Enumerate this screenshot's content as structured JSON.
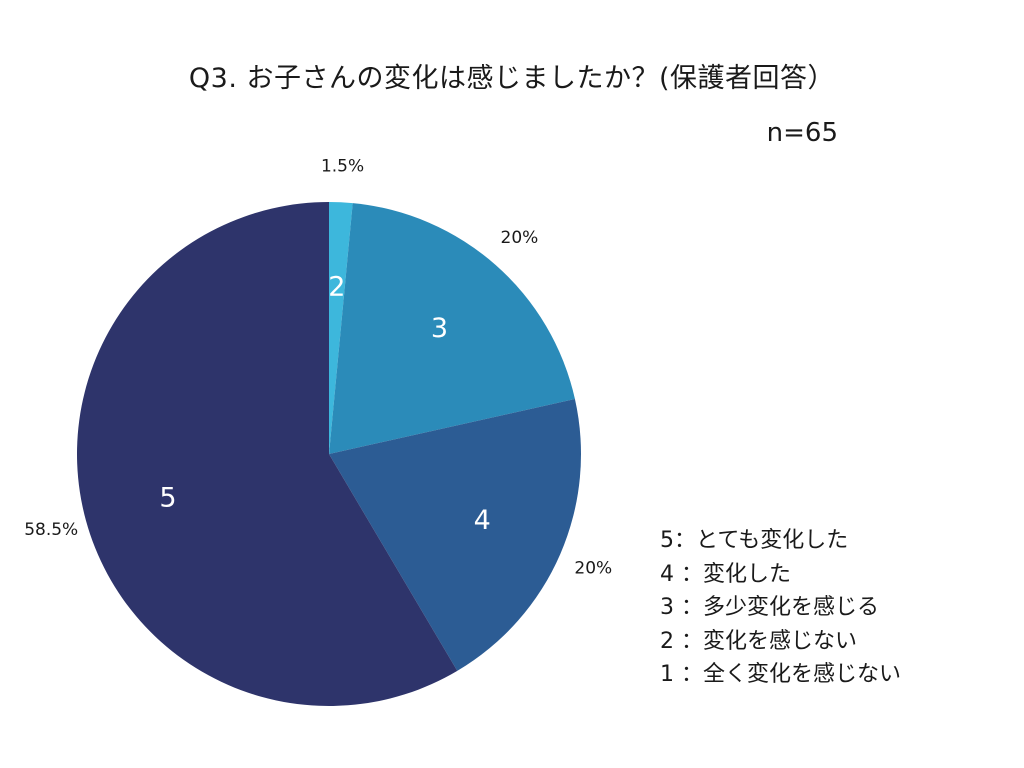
{
  "chart_data": {
    "type": "pie",
    "title": "Q3. お子さんの変化は感じましたか？(保護者回答）",
    "subtitle": "n=65",
    "slices": [
      {
        "label": "2",
        "value": 1.5,
        "pct_label": "1.5%",
        "color": "#3db7dc"
      },
      {
        "label": "3",
        "value": 20,
        "pct_label": "20%",
        "color": "#2b8bb9"
      },
      {
        "label": "4",
        "value": 20,
        "pct_label": "20%",
        "color": "#2c5c94"
      },
      {
        "label": "5",
        "value": 58.5,
        "pct_label": "58.5%",
        "color": "#2e346b"
      }
    ],
    "legend": [
      "5：とても変化した",
      "4 ：変化した",
      "3 ：多少変化を感じる",
      "2 ：変化を感じない",
      "1 ：全く変化を感じない"
    ],
    "legend_position": "bottom-right"
  }
}
